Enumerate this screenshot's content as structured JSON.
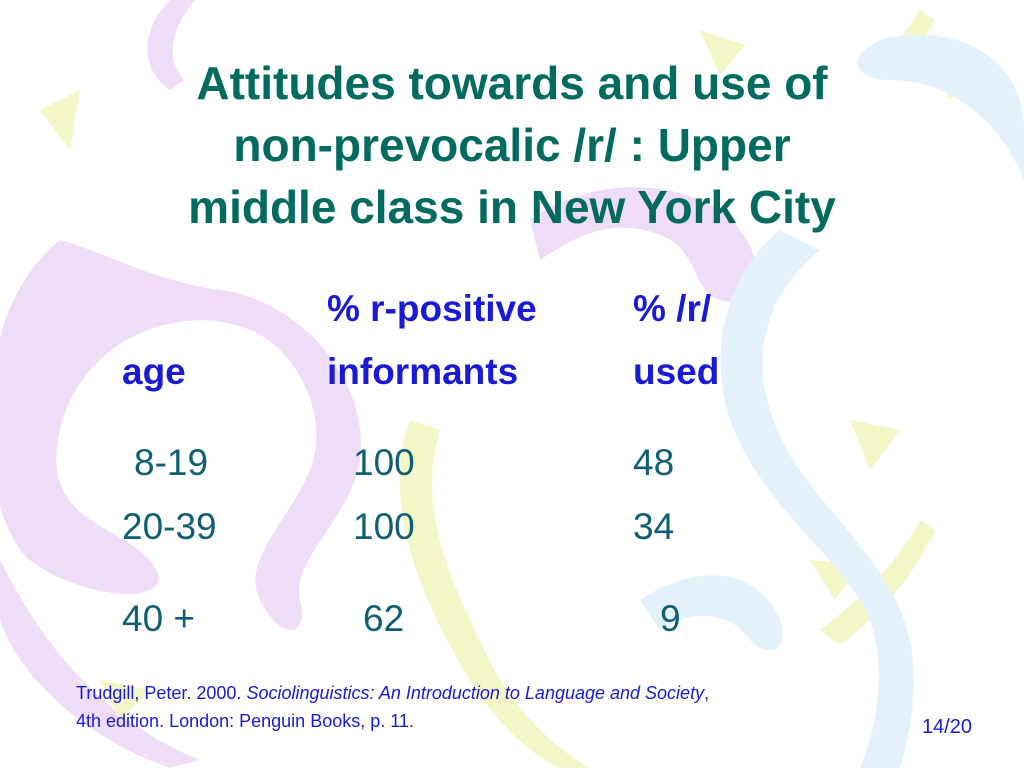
{
  "slide": {
    "title_lines": [
      "Attitudes towards and use of",
      "non-prevocalic /r/ : Upper",
      "middle class in New York City"
    ],
    "table": {
      "header_row1": [
        "",
        "% r-positive",
        "% /r/"
      ],
      "header_row2": [
        "age",
        "informants",
        "used"
      ],
      "rows": [
        [
          "8-19",
          "100",
          "48"
        ],
        [
          "20-39",
          "100",
          "34"
        ],
        [
          "40 +",
          "62",
          "9"
        ]
      ]
    },
    "citation": {
      "prefix": "Trudgill, Peter. 2000. ",
      "book_title": "Sociolinguistics: An Introduction to Language and Society",
      "suffix": ",",
      "line2": "4th edition.  London: Penguin Books, p. 11."
    },
    "page_number": "14/20"
  },
  "colors": {
    "title": "#006b5e",
    "header": "#1a1ad6",
    "cells": "#0f5f73",
    "citation": "#1a1ad6",
    "swirl_purple": "#efdcf7",
    "swirl_yellow": "#f3f6c6",
    "swirl_blue": "#e3f1fb"
  }
}
